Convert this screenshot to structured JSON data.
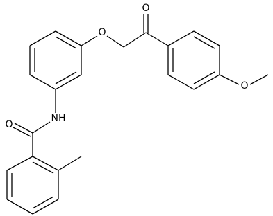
{
  "atoms": [
    {
      "label": "O"
    },
    {
      "label": "O"
    },
    {
      "label": "O"
    },
    {
      "label": "NH"
    },
    {
      "label": "O"
    }
  ]
}
